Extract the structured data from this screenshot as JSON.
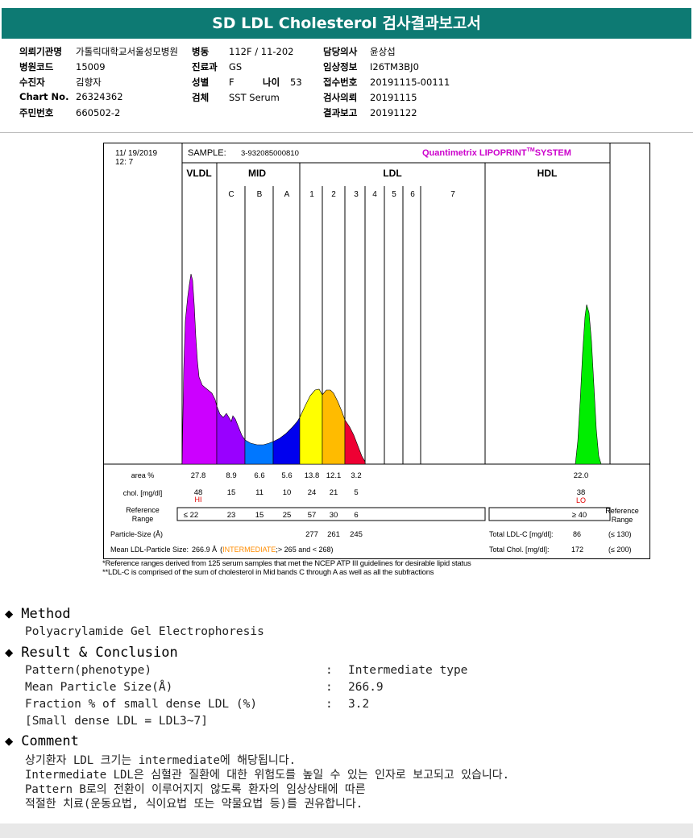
{
  "title": "SD LDL Cholesterol 검사결과보고서",
  "header": {
    "col1": [
      {
        "k": "의뢰기관명",
        "v": "가톨릭대학교서울성모병원"
      },
      {
        "k": "병원코드",
        "v": "15009"
      },
      {
        "k": "수진자",
        "v": "김향자"
      },
      {
        "k": "Chart No.",
        "v": "26324362"
      },
      {
        "k": "주민번호",
        "v": "660502-2"
      }
    ],
    "col2": [
      {
        "k": "병동",
        "v": "112F / 11-202"
      },
      {
        "k": "진료과",
        "v": "GS"
      },
      {
        "k": "성별",
        "v": "F"
      },
      {
        "k": "검체",
        "v": "SST Serum"
      }
    ],
    "age": {
      "k": "나이",
      "v": "53"
    },
    "col3": [
      {
        "k": "담당의사",
        "v": "윤상섭"
      },
      {
        "k": "임상정보",
        "v": "I26TM3BJ0"
      },
      {
        "k": "접수번호",
        "v": "20191115-00111"
      },
      {
        "k": "검사의뢰",
        "v": "20191115"
      },
      {
        "k": "결과보고",
        "v": "20191122"
      }
    ]
  },
  "chart_data": {
    "type": "area",
    "date": "11/ 19/2019",
    "time": "12: 7",
    "sample_label": "SAMPLE:",
    "sample": "3-932085000810",
    "brand": "Quantimetrix LIPOPRINT",
    "brand_tm": "TM",
    "brand_suffix": "SYSTEM",
    "sections": [
      "VLDL",
      "MID",
      "LDL",
      "HDL"
    ],
    "bands": [
      "C",
      "B",
      "A",
      "1",
      "2",
      "3",
      "4",
      "5",
      "6",
      "7"
    ],
    "area_label": "area %",
    "area": [
      "27.8",
      "8.9",
      "6.6",
      "5.6",
      "13.8",
      "12.1",
      "3.2",
      "22.0"
    ],
    "chol_label": "chol. [mg/dl]",
    "chol": [
      "48",
      "15",
      "11",
      "10",
      "24",
      "21",
      "5",
      "38"
    ],
    "flag_hi": "HI",
    "flag_lo": "LO",
    "ref_label_1": "Reference",
    "ref_label_2": "Range",
    "ref": [
      "≤ 22",
      "23",
      "15",
      "25",
      "57",
      "30",
      "6",
      "≥ 40"
    ],
    "particle_label": "Particle-Size (Å)",
    "particle": [
      "277",
      "261",
      "245"
    ],
    "total_ldlc_label": "Total LDL-C [mg/dl]:",
    "total_ldlc": "86",
    "total_ldlc_ref": "(≤ 130)",
    "total_chol_label": "Total Chol. [mg/dl]:",
    "total_chol": "172",
    "total_chol_ref": "(≤ 200)",
    "mean_label": "Mean LDL-Particle Size:",
    "mean_value": "266.9 Å",
    "mean_class": "INTERMEDIATE",
    "mean_range": ";> 265 and < 268)"
  },
  "footnotes": [
    "*Reference ranges derived from 125 serum samples that met the NCEP ATP III guidelines for desirable lipid status",
    "**LDL-C is comprised of the sum of cholesterol in Mid bands C through A as well as all the subfractions"
  ],
  "method": {
    "title": "Method",
    "text": "Polyacrylamide Gel Electrophoresis"
  },
  "result": {
    "title": "Result & Conclusion",
    "rows": [
      {
        "label": "Pattern(phenotype)",
        "value": "Intermediate type"
      },
      {
        "label": "Mean Particle Size(Å)",
        "value": "266.9"
      },
      {
        "label": "Fraction % of small dense LDL (%)",
        "value": "3.2"
      }
    ],
    "sep": ":",
    "note": "[Small dense LDL = LDL3~7]"
  },
  "comment": {
    "title": "Comment",
    "lines": [
      "상기환자 LDL 크기는 intermediate에 해당됩니다.",
      "Intermediate LDL은 심혈관 질환에 대한 위험도를 높일 수 있는 인자로 보고되고 있습니다.",
      "Pattern B로의 전환이 이루어지지 않도록 환자의 임상상태에 따른",
      "적절한 치료(운동요법, 식이요법 또는 약물요법 등)를 권유합니다."
    ]
  },
  "colors": {
    "header": "#0d7a73",
    "brand": "#cc00cc",
    "hi": "#e00000",
    "intermediate": "#ff8c00"
  }
}
